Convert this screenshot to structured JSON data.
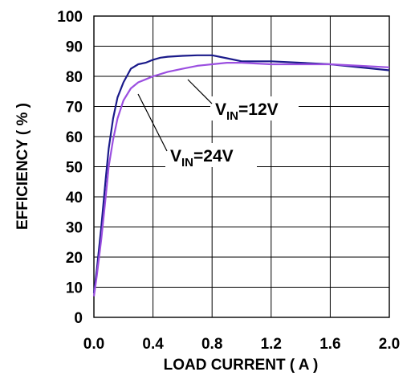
{
  "chart_data": {
    "type": "line",
    "xlabel": "LOAD CURRENT ( A )",
    "ylabel": "EFFICIENCY ( % )",
    "xlim": [
      0,
      2.0
    ],
    "ylim": [
      0,
      100
    ],
    "x_ticks": [
      "0.0",
      "0.4",
      "0.8",
      "1.2",
      "1.6",
      "2.0"
    ],
    "y_ticks": [
      "0",
      "10",
      "20",
      "30",
      "40",
      "50",
      "60",
      "70",
      "80",
      "90",
      "100"
    ],
    "x_tick_values": [
      0,
      0.4,
      0.8,
      1.2,
      1.6,
      2.0
    ],
    "y_tick_values": [
      0,
      10,
      20,
      30,
      40,
      50,
      60,
      70,
      80,
      90,
      100
    ],
    "grid": true,
    "series": [
      {
        "color": "#1a1a8a",
        "x": [
          0.0,
          0.02,
          0.05,
          0.08,
          0.1,
          0.13,
          0.16,
          0.2,
          0.25,
          0.3,
          0.35,
          0.4,
          0.45,
          0.5,
          0.6,
          0.7,
          0.8,
          0.9,
          1.0,
          1.2,
          1.4,
          1.6,
          1.8,
          2.0
        ],
        "y": [
          8,
          16,
          30,
          46,
          56,
          66,
          73,
          78,
          82.5,
          84,
          84.5,
          85.5,
          86.2,
          86.5,
          86.8,
          87,
          87,
          86,
          85,
          85,
          84.5,
          84,
          83,
          82
        ]
      },
      {
        "color": "#9b4fe0",
        "x": [
          0.0,
          0.02,
          0.05,
          0.08,
          0.1,
          0.13,
          0.16,
          0.2,
          0.25,
          0.3,
          0.35,
          0.4,
          0.5,
          0.6,
          0.7,
          0.8,
          0.9,
          1.0,
          1.2,
          1.4,
          1.6,
          1.8,
          2.0
        ],
        "y": [
          7,
          14,
          26,
          40,
          50,
          59,
          66,
          72,
          76,
          78,
          79,
          80,
          81.5,
          82.5,
          83.5,
          84,
          84.5,
          84.5,
          84,
          84,
          84,
          83.5,
          83
        ]
      }
    ],
    "annotations": [
      {
        "main": "V",
        "sub": "IN",
        "rest": "=12V"
      },
      {
        "main": "V",
        "sub": "IN",
        "rest": "=24V"
      }
    ]
  }
}
